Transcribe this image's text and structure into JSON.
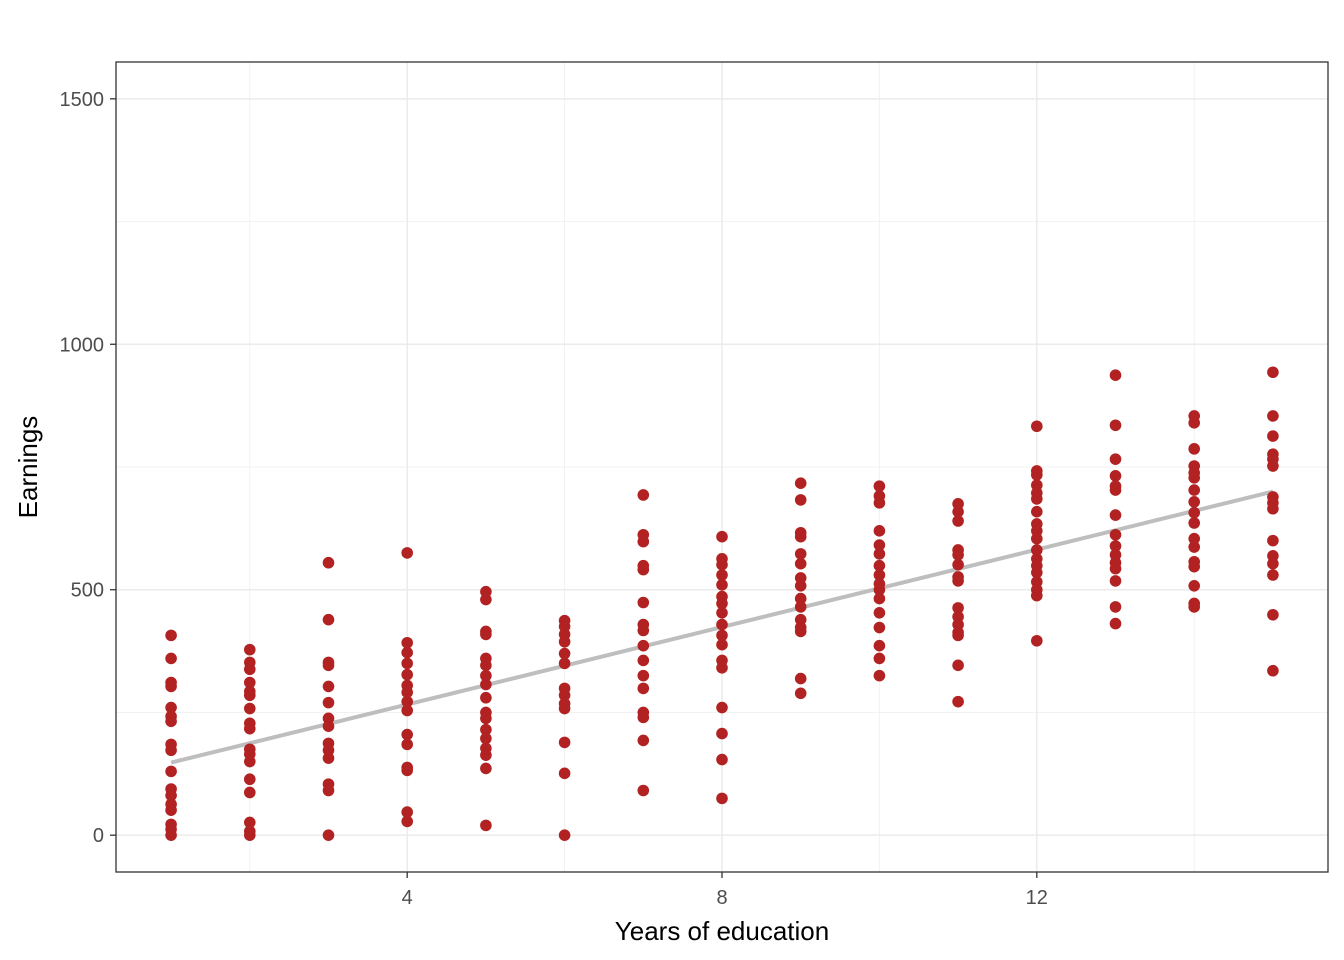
{
  "chart_data": {
    "type": "scatter",
    "xlabel": "Years of education",
    "ylabel": "Earnings",
    "xlim": [
      0.3,
      15.7
    ],
    "ylim": [
      -75,
      1575
    ],
    "x_ticks": [
      4,
      8,
      12
    ],
    "y_ticks": [
      0,
      500,
      1000,
      1500
    ],
    "grid": true,
    "point_color": "#b22222",
    "fit_line_color": "#bebebe",
    "fit_line": {
      "x": [
        1,
        15
      ],
      "y": [
        148,
        700
      ]
    },
    "points": [
      {
        "x": 1,
        "y": [
          407,
          360,
          311,
          303,
          260,
          242,
          232,
          185,
          173,
          130,
          94,
          81,
          63,
          51,
          22,
          12,
          0
        ]
      },
      {
        "x": 2,
        "y": [
          378,
          352,
          338,
          311,
          293,
          285,
          258,
          228,
          217,
          175,
          165,
          150,
          114,
          87,
          26,
          8,
          0
        ]
      },
      {
        "x": 3,
        "y": [
          555,
          439,
          352,
          346,
          303,
          270,
          238,
          222,
          187,
          173,
          157,
          104,
          91,
          0
        ]
      },
      {
        "x": 4,
        "y": [
          575,
          392,
          372,
          350,
          327,
          305,
          291,
          272,
          254,
          205,
          185,
          138,
          132,
          47,
          28
        ]
      },
      {
        "x": 5,
        "y": [
          496,
          480,
          415,
          409,
          360,
          346,
          325,
          307,
          280,
          250,
          238,
          215,
          197,
          177,
          163,
          136,
          20
        ]
      },
      {
        "x": 6,
        "y": [
          437,
          425,
          409,
          394,
          370,
          350,
          299,
          285,
          268,
          258,
          189,
          126,
          0
        ]
      },
      {
        "x": 7,
        "y": [
          693,
          612,
          598,
          549,
          541,
          474,
          429,
          417,
          386,
          356,
          325,
          299,
          250,
          240,
          193,
          91
        ]
      },
      {
        "x": 8,
        "y": [
          608,
          563,
          551,
          530,
          510,
          486,
          472,
          453,
          429,
          407,
          388,
          356,
          341,
          260,
          207,
          154,
          75
        ]
      },
      {
        "x": 9,
        "y": [
          717,
          683,
          616,
          608,
          573,
          553,
          524,
          508,
          482,
          465,
          439,
          423,
          415,
          319,
          289
        ]
      },
      {
        "x": 10,
        "y": [
          711,
          691,
          677,
          620,
          591,
          573,
          549,
          530,
          512,
          500,
          482,
          453,
          423,
          386,
          360,
          325
        ]
      },
      {
        "x": 11,
        "y": [
          675,
          659,
          640,
          581,
          571,
          551,
          526,
          518,
          463,
          445,
          429,
          413,
          407,
          346,
          272
        ]
      },
      {
        "x": 12,
        "y": [
          833,
          742,
          734,
          713,
          697,
          685,
          659,
          634,
          620,
          604,
          581,
          563,
          549,
          535,
          516,
          500,
          488,
          396
        ]
      },
      {
        "x": 13,
        "y": [
          937,
          835,
          766,
          732,
          711,
          703,
          652,
          612,
          589,
          571,
          555,
          543,
          518,
          465,
          431
        ]
      },
      {
        "x": 14,
        "y": [
          854,
          840,
          787,
          752,
          738,
          728,
          703,
          679,
          657,
          636,
          604,
          587,
          557,
          547,
          508,
          472,
          465
        ]
      },
      {
        "x": 15,
        "y": [
          943,
          854,
          813,
          776,
          766,
          752,
          689,
          677,
          665,
          600,
          569,
          553,
          530,
          449,
          335
        ]
      }
    ]
  }
}
